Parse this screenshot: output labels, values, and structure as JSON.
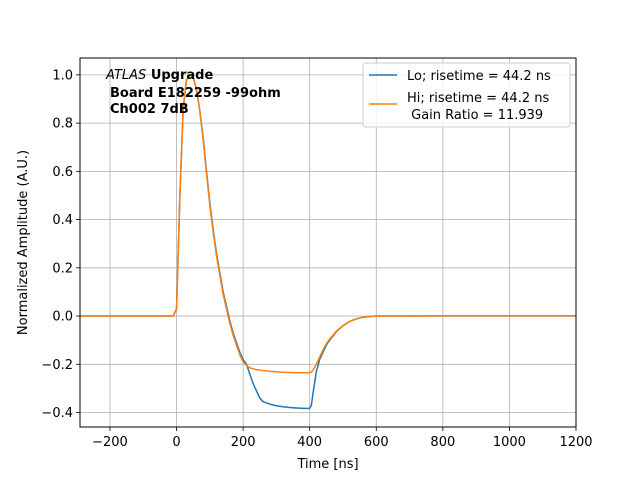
{
  "chart_data": {
    "type": "line",
    "xlabel": "Time [ns]",
    "ylabel": "Normalized Amplitude (A.U.)",
    "xlim": [
      -290,
      1200
    ],
    "ylim": [
      -0.46,
      1.07
    ],
    "xticks": [
      -200,
      0,
      200,
      400,
      600,
      800,
      1000,
      1200
    ],
    "yticks": [
      -0.4,
      -0.2,
      0.0,
      0.2,
      0.4,
      0.6,
      0.8,
      1.0
    ],
    "xtick_labels": [
      "−200",
      "0",
      "200",
      "400",
      "600",
      "800",
      "1000",
      "1200"
    ],
    "ytick_labels": [
      "−0.4",
      "−0.2",
      "0.0",
      "0.2",
      "0.4",
      "0.6",
      "0.8",
      "1.0"
    ],
    "grid": true,
    "legend_position": "top-right",
    "annotation": {
      "italic": "ATLAS",
      "bold": "Upgrade",
      "line2": "Board E182259 -99ohm",
      "line3": "Ch002 7dB"
    },
    "series": [
      {
        "name": "Lo; risetime = 44.2 ns",
        "color": "#1f77b4",
        "x": [
          -290,
          -10,
          0,
          10,
          20,
          30,
          40,
          50,
          60,
          70,
          80,
          90,
          100,
          110,
          120,
          130,
          140,
          150,
          160,
          170,
          180,
          190,
          200,
          210,
          220,
          230,
          240,
          250,
          260,
          280,
          300,
          320,
          340,
          360,
          380,
          400,
          405,
          410,
          420,
          430,
          440,
          450,
          460,
          480,
          500,
          520,
          540,
          560,
          580,
          600,
          700,
          800,
          1200
        ],
        "y": [
          0.0,
          0.0,
          0.03,
          0.5,
          0.86,
          0.98,
          1.0,
          0.99,
          0.94,
          0.85,
          0.74,
          0.6,
          0.47,
          0.36,
          0.26,
          0.18,
          0.1,
          0.04,
          -0.02,
          -0.07,
          -0.11,
          -0.15,
          -0.18,
          -0.2,
          -0.24,
          -0.28,
          -0.31,
          -0.34,
          -0.355,
          -0.365,
          -0.372,
          -0.376,
          -0.379,
          -0.381,
          -0.383,
          -0.383,
          -0.37,
          -0.32,
          -0.23,
          -0.18,
          -0.15,
          -0.12,
          -0.1,
          -0.065,
          -0.04,
          -0.022,
          -0.012,
          -0.005,
          -0.002,
          0.0,
          0.0,
          0.001,
          0.001
        ]
      },
      {
        "name": "Hi; risetime = 44.2 ns",
        "name_line2": " Gain Ratio = 11.939",
        "color": "#ff7f0e",
        "x": [
          -290,
          -10,
          0,
          10,
          20,
          30,
          40,
          50,
          60,
          70,
          80,
          90,
          100,
          110,
          120,
          130,
          140,
          150,
          160,
          170,
          180,
          190,
          200,
          210,
          220,
          240,
          260,
          280,
          300,
          320,
          340,
          360,
          380,
          400,
          405,
          410,
          420,
          430,
          440,
          450,
          460,
          480,
          500,
          520,
          540,
          560,
          580,
          600,
          700,
          800,
          1200
        ],
        "y": [
          0.0,
          0.0,
          0.03,
          0.5,
          0.86,
          0.98,
          1.0,
          0.99,
          0.94,
          0.85,
          0.73,
          0.59,
          0.46,
          0.35,
          0.25,
          0.17,
          0.09,
          0.03,
          -0.03,
          -0.08,
          -0.12,
          -0.16,
          -0.19,
          -0.205,
          -0.215,
          -0.222,
          -0.226,
          -0.229,
          -0.231,
          -0.233,
          -0.234,
          -0.235,
          -0.235,
          -0.235,
          -0.232,
          -0.225,
          -0.2,
          -0.17,
          -0.14,
          -0.115,
          -0.095,
          -0.063,
          -0.04,
          -0.022,
          -0.012,
          -0.005,
          -0.002,
          0.0,
          0.0,
          0.001,
          0.001
        ]
      }
    ]
  }
}
